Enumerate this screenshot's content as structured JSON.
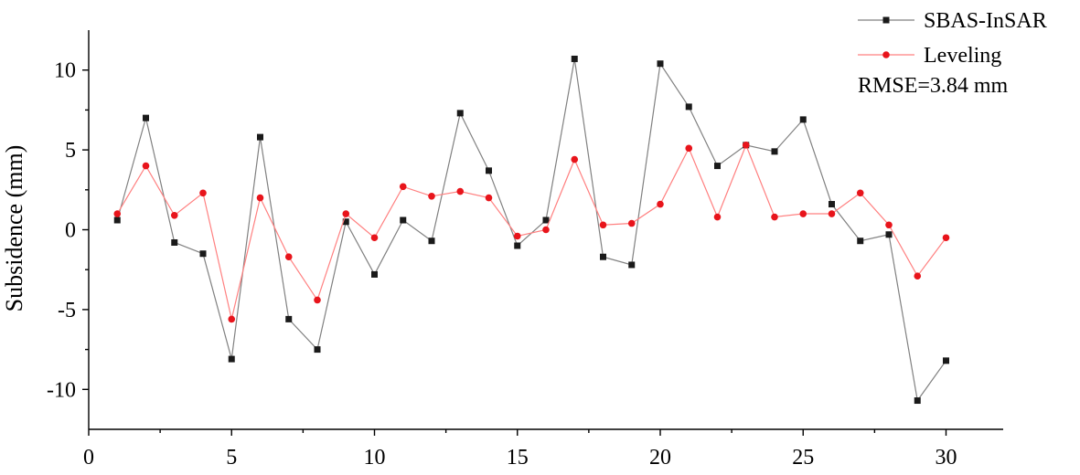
{
  "chart_data": {
    "type": "line",
    "title": "",
    "xlabel": "",
    "ylabel": "Subsidence (mm)",
    "xlim": [
      0,
      32
    ],
    "ylim": [
      -12.5,
      12.5
    ],
    "xticks": [
      0,
      5,
      10,
      15,
      20,
      25,
      30
    ],
    "yticks": [
      -10,
      -5,
      0,
      5,
      10
    ],
    "xtick_labels": [
      "0",
      "5",
      "10",
      "15",
      "20",
      "25",
      "30"
    ],
    "ytick_labels": [
      "-10",
      "-5",
      "0",
      "5",
      "10"
    ],
    "grid": false,
    "legend_position": "top-right",
    "annotation": "RMSE=3.84 mm",
    "x": [
      1,
      2,
      3,
      4,
      5,
      6,
      7,
      8,
      9,
      10,
      11,
      12,
      13,
      14,
      15,
      16,
      17,
      18,
      19,
      20,
      21,
      22,
      23,
      24,
      25,
      26,
      27,
      28,
      29,
      30
    ],
    "series": [
      {
        "name": "SBAS-InSAR",
        "color": "#808080",
        "marker": "square",
        "marker_color": "#1a1a1a",
        "values": [
          0.6,
          7.0,
          -0.8,
          -1.5,
          -8.1,
          5.8,
          -5.6,
          -7.5,
          0.5,
          -2.8,
          0.6,
          -0.7,
          7.3,
          3.7,
          -1.0,
          0.6,
          10.7,
          -1.7,
          -2.2,
          10.4,
          7.7,
          4.0,
          5.3,
          4.9,
          6.9,
          1.6,
          -0.7,
          -0.3,
          -10.7,
          -8.2
        ]
      },
      {
        "name": "Leveling",
        "color": "#ff8080",
        "marker": "circle",
        "marker_color": "#e8141b",
        "values": [
          1.0,
          4.0,
          0.9,
          2.3,
          -5.6,
          2.0,
          -1.7,
          -4.4,
          1.0,
          -0.5,
          2.7,
          2.1,
          2.4,
          2.0,
          -0.4,
          0.0,
          4.4,
          0.3,
          0.4,
          1.6,
          5.1,
          0.8,
          5.3,
          0.8,
          1.0,
          1.0,
          2.3,
          0.3,
          -2.9,
          -0.5
        ]
      }
    ]
  }
}
